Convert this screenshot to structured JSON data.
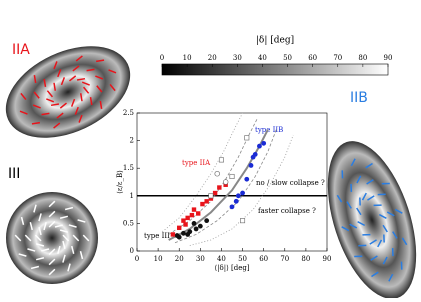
{
  "chart_data": {
    "type": "scatter",
    "x_label": "⟨|δ|⟩ [deg]",
    "y_label": "⟨ε/ε_B⟩",
    "xlim": [
      0,
      90
    ],
    "xticks": [
      0,
      10,
      20,
      30,
      40,
      50,
      60,
      70,
      80,
      90
    ],
    "ylim": [
      0,
      2.5
    ],
    "yticks": [
      0,
      0.5,
      1,
      1.5,
      2,
      2.5
    ],
    "reference_line": 1,
    "annotations": [
      "type IIB",
      "type IIA",
      "type III",
      "no / slow collapse ?",
      "faster collapse ?"
    ],
    "series": [
      {
        "type": "line",
        "style": "solid",
        "color": "#888888",
        "x": [
          15,
          25,
          35,
          45,
          52,
          58,
          62
        ],
        "values": [
          0.2,
          0.4,
          0.7,
          1.1,
          1.5,
          1.9,
          2.2
        ]
      },
      {
        "type": "line",
        "style": "dashed",
        "color": "#888888",
        "x": [
          15,
          25,
          35,
          42,
          48,
          53,
          57
        ],
        "values": [
          0.3,
          0.55,
          0.9,
          1.3,
          1.7,
          2.1,
          2.4
        ]
      },
      {
        "type": "line",
        "style": "dashed",
        "color": "#888888",
        "x": [
          18,
          28,
          38,
          48,
          56,
          62,
          66
        ],
        "values": [
          0.15,
          0.3,
          0.55,
          0.9,
          1.35,
          1.8,
          2.2
        ]
      },
      {
        "type": "line",
        "style": "dotted",
        "color": "#999999",
        "x": [
          12,
          20,
          28,
          35,
          41,
          46,
          50
        ],
        "values": [
          0.35,
          0.6,
          1.0,
          1.4,
          1.8,
          2.2,
          2.5
        ]
      },
      {
        "type": "line",
        "style": "dotted",
        "color": "#999999",
        "x": [
          25,
          35,
          45,
          55,
          63,
          70,
          74
        ],
        "values": [
          0.1,
          0.2,
          0.4,
          0.75,
          1.2,
          1.7,
          2.1
        ]
      },
      {
        "type": "points",
        "marker": "circle",
        "color": "#111111",
        "x": [
          19,
          20,
          22,
          24,
          25,
          27,
          28,
          30,
          33
        ],
        "values": [
          0.28,
          0.25,
          0.32,
          0.3,
          0.35,
          0.5,
          0.4,
          0.45,
          0.55
        ]
      },
      {
        "type": "points",
        "marker": "square",
        "color": "#e8141b",
        "x": [
          17,
          20,
          22,
          23,
          24,
          26,
          27,
          29,
          31,
          33,
          35,
          37,
          39,
          42
        ],
        "values": [
          0.3,
          0.42,
          0.55,
          0.48,
          0.6,
          0.65,
          0.75,
          0.68,
          0.85,
          0.9,
          0.95,
          1.05,
          1.15,
          1.2
        ]
      },
      {
        "type": "points",
        "marker": "circle",
        "color": "#1a2bd4",
        "x": [
          45,
          47,
          48,
          50,
          52,
          54,
          55,
          56,
          58,
          60
        ],
        "values": [
          0.8,
          0.9,
          1.0,
          1.05,
          1.3,
          1.55,
          1.7,
          1.75,
          1.9,
          1.95
        ]
      },
      {
        "type": "points",
        "marker": "open-square",
        "color": "#666666",
        "x": [
          35,
          40,
          45,
          52,
          50
        ],
        "values": [
          1.0,
          1.65,
          1.35,
          2.05,
          0.55
        ]
      },
      {
        "type": "points",
        "marker": "open-circle",
        "color": "#666666",
        "x": [
          42,
          38
        ],
        "values": [
          1.25,
          1.4
        ]
      }
    ],
    "colorbar": {
      "title": "|δ| [deg]",
      "lim": [
        0,
        90
      ],
      "ticks": [
        0,
        10,
        20,
        30,
        40,
        50,
        60,
        70,
        80,
        90
      ]
    },
    "panel_labels": [
      "IIA",
      "III",
      "IIB"
    ]
  }
}
